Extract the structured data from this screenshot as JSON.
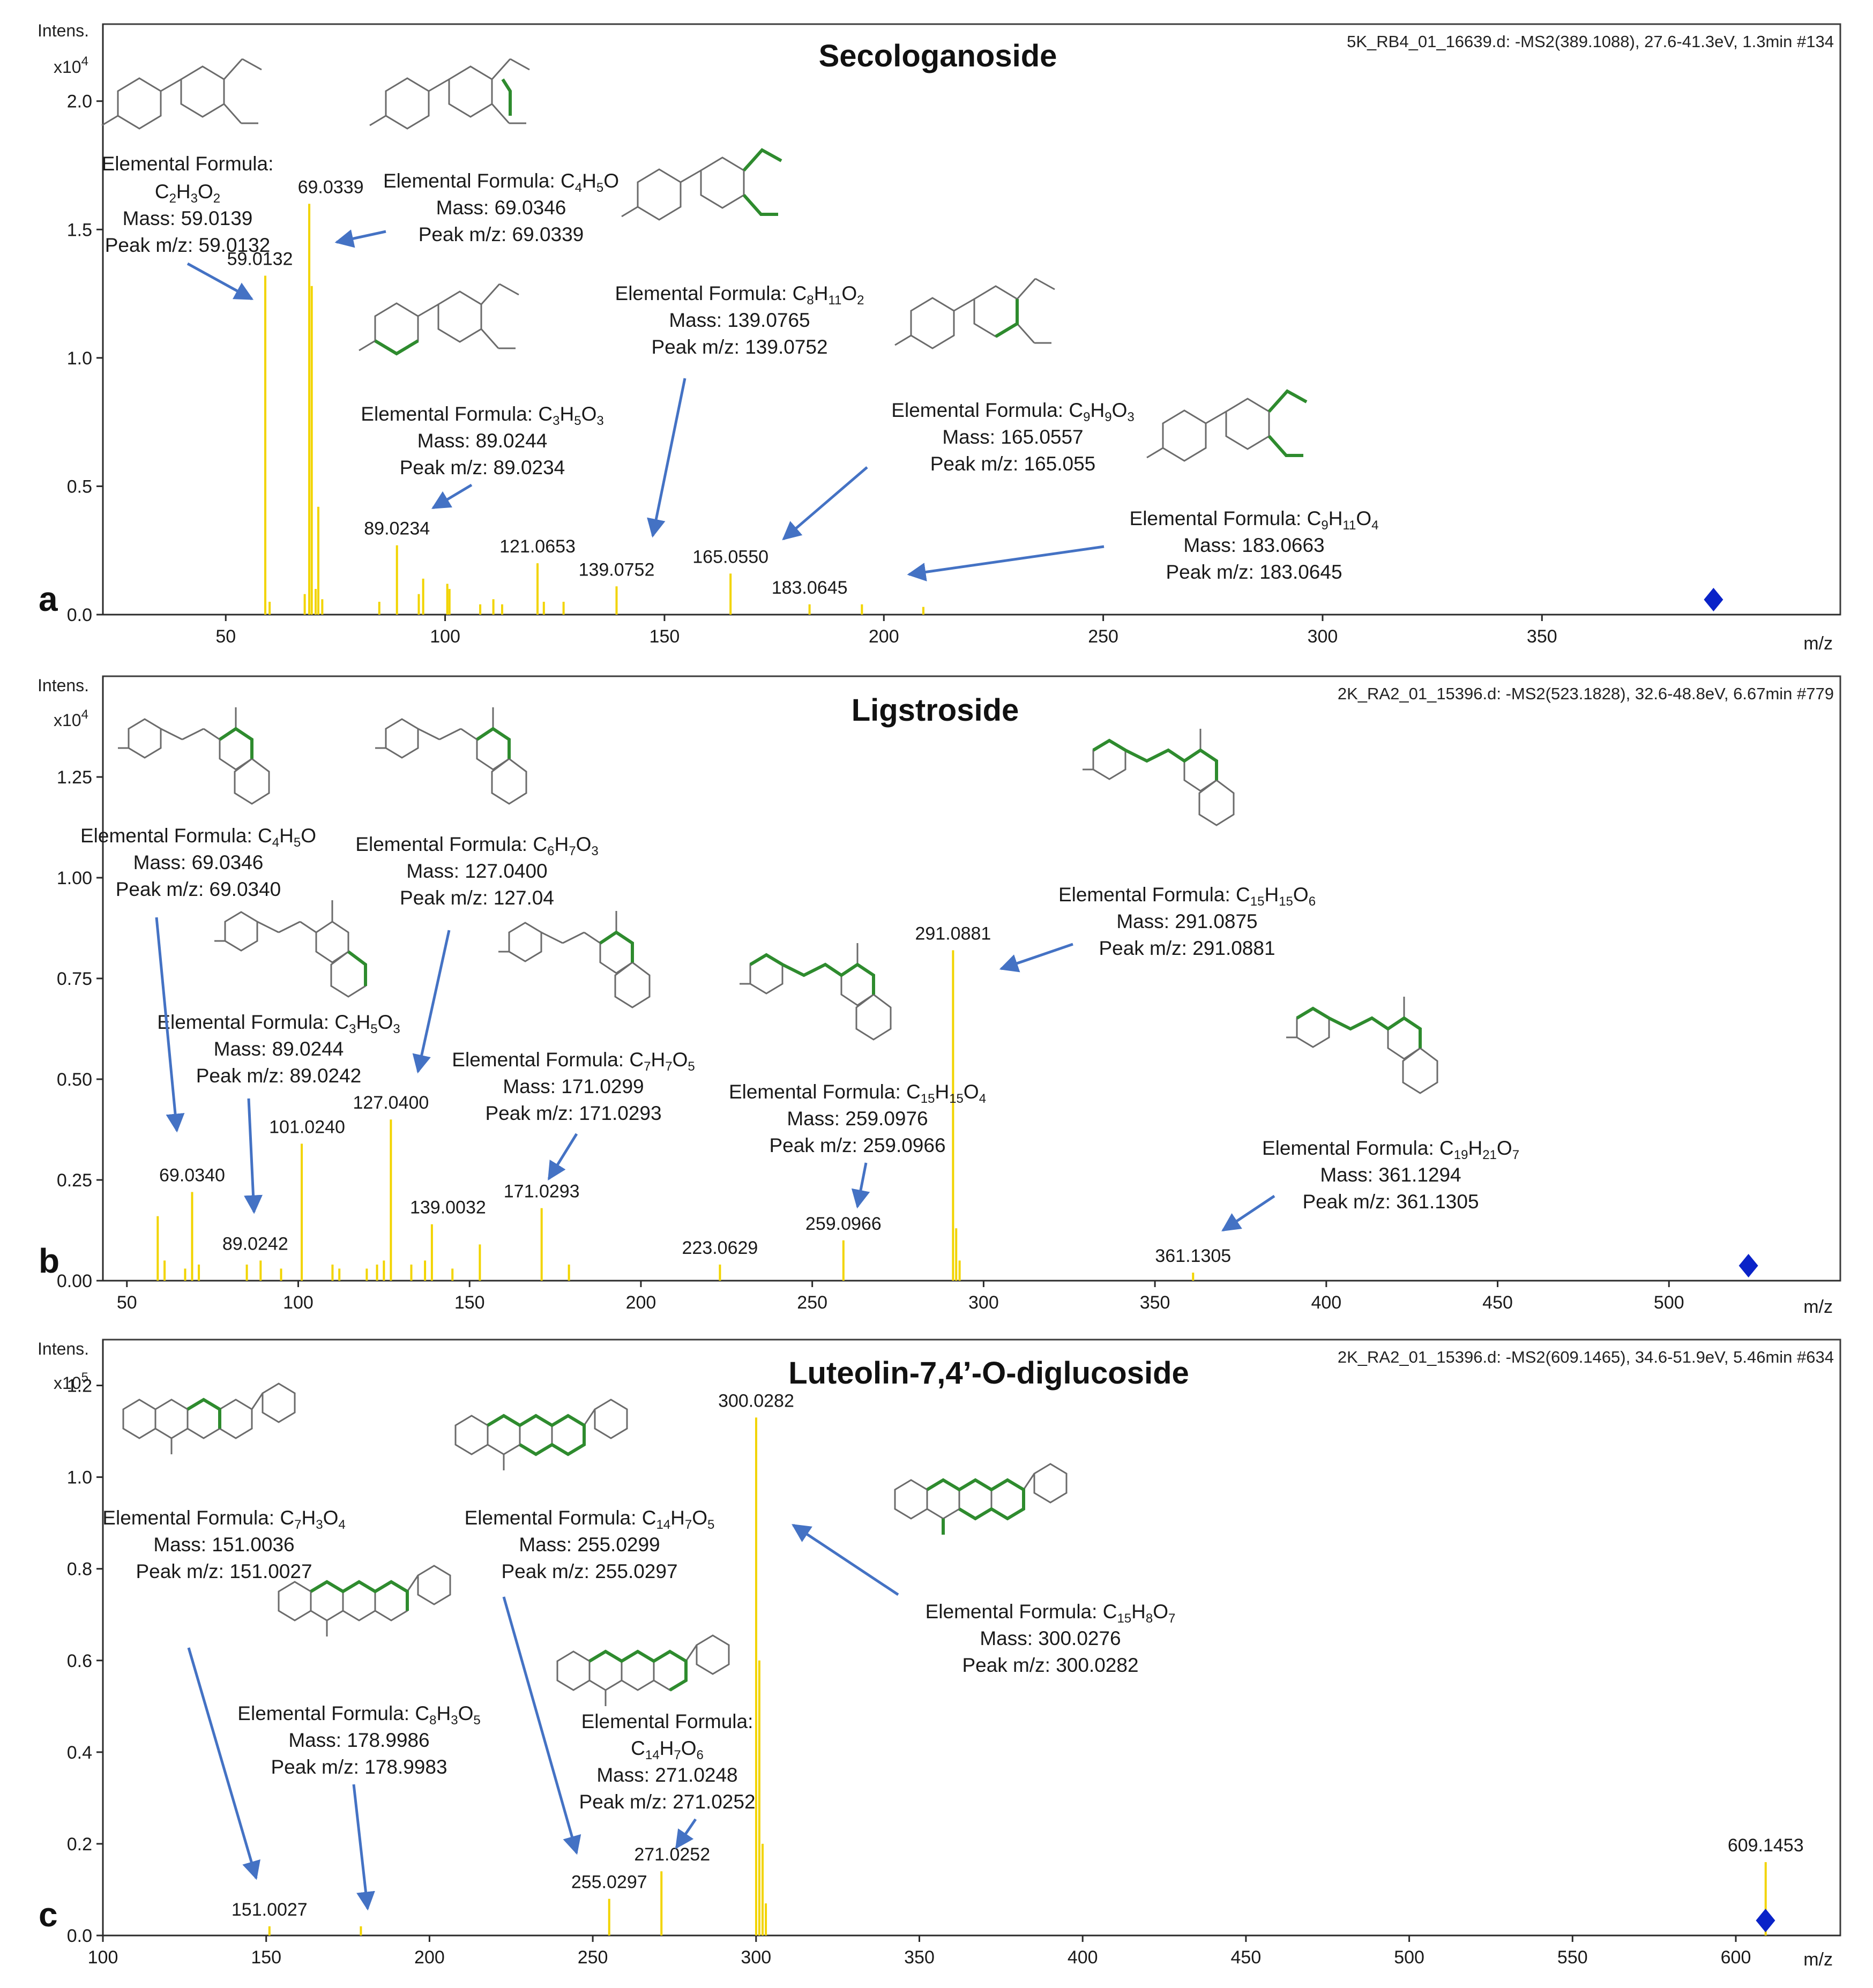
{
  "colors": {
    "stick": "#f2d400",
    "arrow": "#4472c4",
    "marker": "#0a23c8",
    "highlight": "#2e8b2e"
  },
  "intens_label": "Intens.",
  "mz_label": "m/z",
  "chart_data": [
    {
      "type": "bar",
      "panel": "a",
      "title": "Secologanoside",
      "source": "5K_RB4_01_16639.d: -MS2(389.1088), 27.6-41.3eV, 1.3min #134",
      "scale": "x10",
      "scale_exp": "4",
      "xlim": [
        22,
        418
      ],
      "ylim": [
        0,
        2.3
      ],
      "xticks": [
        "50",
        "100",
        "150",
        "200",
        "250",
        "300",
        "350"
      ],
      "yticks": [
        "0.0",
        "0.5",
        "1.0",
        "1.5",
        "2.0"
      ],
      "xtick_values": [
        50,
        100,
        150,
        200,
        250,
        300,
        350
      ],
      "ytick_values": [
        0,
        0.5,
        1.0,
        1.5,
        2.0
      ],
      "peaks": [
        {
          "mz": 59.0132,
          "y": 1.32
        },
        {
          "mz": 60.0,
          "y": 0.05
        },
        {
          "mz": 68.0,
          "y": 0.08
        },
        {
          "mz": 69.0339,
          "y": 1.6
        },
        {
          "mz": 69.6,
          "y": 1.28
        },
        {
          "mz": 70.5,
          "y": 0.1
        },
        {
          "mz": 71.1,
          "y": 0.42
        },
        {
          "mz": 72.0,
          "y": 0.06
        },
        {
          "mz": 85.0,
          "y": 0.05
        },
        {
          "mz": 89.0234,
          "y": 0.27
        },
        {
          "mz": 94.0,
          "y": 0.08
        },
        {
          "mz": 95.0,
          "y": 0.14
        },
        {
          "mz": 100.5,
          "y": 0.12
        },
        {
          "mz": 101.0,
          "y": 0.1
        },
        {
          "mz": 108.0,
          "y": 0.04
        },
        {
          "mz": 111.0,
          "y": 0.06
        },
        {
          "mz": 113.0,
          "y": 0.04
        },
        {
          "mz": 121.0653,
          "y": 0.2
        },
        {
          "mz": 122.5,
          "y": 0.05
        },
        {
          "mz": 127.0,
          "y": 0.05
        },
        {
          "mz": 139.0752,
          "y": 0.11
        },
        {
          "mz": 165.055,
          "y": 0.16
        },
        {
          "mz": 183.0645,
          "y": 0.04
        },
        {
          "mz": 195.0,
          "y": 0.04
        },
        {
          "mz": 209.0,
          "y": 0.03
        }
      ],
      "peak_labels": [
        "59.0132",
        "69.0339",
        "89.0234",
        "121.0653",
        "139.0752",
        "165.0550",
        "183.0645"
      ],
      "precursor_mz": 389.1,
      "annotations": [
        {
          "label": "Elemental Formula:",
          "f1": "C",
          "s1": "2",
          "f2": "H",
          "s2": "3",
          "f3": "O",
          "s3": "2",
          "f4": "",
          "s4": "",
          "mass": "Mass: 59.0139",
          "peak": "Peak m/z: 59.0132"
        },
        {
          "label": "Elemental Formula: ",
          "f1": "C",
          "s1": "4",
          "f2": "H",
          "s2": "5",
          "f3": "O",
          "s3": "",
          "f4": "",
          "s4": "",
          "mass": "Mass: 69.0346",
          "peak": "Peak m/z: 69.0339"
        },
        {
          "label": "Elemental Formula: ",
          "f1": "C",
          "s1": "3",
          "f2": "H",
          "s2": "5",
          "f3": "O",
          "s3": "3",
          "f4": "",
          "s4": "",
          "mass": "Mass: 89.0244",
          "peak": "Peak m/z: 89.0234"
        },
        {
          "label": "Elemental Formula: ",
          "f1": "C",
          "s1": "8",
          "f2": "H",
          "s2": "11",
          "f3": "O",
          "s3": "2",
          "f4": "",
          "s4": "",
          "mass": "Mass: 139.0765",
          "peak": "Peak m/z: 139.0752"
        },
        {
          "label": "Elemental Formula: ",
          "f1": "C",
          "s1": "9",
          "f2": "H",
          "s2": "9",
          "f3": "O",
          "s3": "3",
          "f4": "",
          "s4": "",
          "mass": "Mass: 165.0557",
          "peak": "Peak m/z: 165.055"
        },
        {
          "label": "Elemental Formula: ",
          "f1": "C",
          "s1": "9",
          "f2": "H",
          "s2": "11",
          "f3": "O",
          "s3": "4",
          "f4": "",
          "s4": "",
          "mass": "Mass: 183.0663",
          "peak": "Peak m/z: 183.0645"
        }
      ]
    },
    {
      "type": "bar",
      "panel": "b",
      "title": "Ligstroside",
      "source": "2K_RA2_01_15396.d: -MS2(523.1828), 32.6-48.8eV, 6.67min #779",
      "scale": "x10",
      "scale_exp": "4",
      "xlim": [
        43,
        550
      ],
      "ylim": [
        0,
        1.5
      ],
      "xticks": [
        "50",
        "100",
        "150",
        "200",
        "250",
        "300",
        "350",
        "400",
        "450",
        "500"
      ],
      "yticks": [
        "0.00",
        "0.25",
        "0.50",
        "0.75",
        "1.00",
        "1.25"
      ],
      "xtick_values": [
        50,
        100,
        150,
        200,
        250,
        300,
        350,
        400,
        450,
        500
      ],
      "ytick_values": [
        0,
        0.25,
        0.5,
        0.75,
        1.0,
        1.25
      ],
      "peaks": [
        {
          "mz": 59.0,
          "y": 0.16
        },
        {
          "mz": 61.0,
          "y": 0.05
        },
        {
          "mz": 67.0,
          "y": 0.03
        },
        {
          "mz": 69.034,
          "y": 0.22
        },
        {
          "mz": 71.0,
          "y": 0.04
        },
        {
          "mz": 85.0,
          "y": 0.04
        },
        {
          "mz": 89.0242,
          "y": 0.05
        },
        {
          "mz": 95.0,
          "y": 0.03
        },
        {
          "mz": 101.024,
          "y": 0.34
        },
        {
          "mz": 110.0,
          "y": 0.04
        },
        {
          "mz": 112.0,
          "y": 0.03
        },
        {
          "mz": 120.0,
          "y": 0.03
        },
        {
          "mz": 123.0,
          "y": 0.04
        },
        {
          "mz": 125.0,
          "y": 0.05
        },
        {
          "mz": 127.04,
          "y": 0.4
        },
        {
          "mz": 133.0,
          "y": 0.04
        },
        {
          "mz": 137.0,
          "y": 0.05
        },
        {
          "mz": 139.0032,
          "y": 0.14
        },
        {
          "mz": 145.0,
          "y": 0.03
        },
        {
          "mz": 153.0,
          "y": 0.09
        },
        {
          "mz": 171.0293,
          "y": 0.18
        },
        {
          "mz": 179.0,
          "y": 0.04
        },
        {
          "mz": 223.0629,
          "y": 0.04
        },
        {
          "mz": 259.0966,
          "y": 0.1
        },
        {
          "mz": 291.0881,
          "y": 0.82
        },
        {
          "mz": 292.0,
          "y": 0.13
        },
        {
          "mz": 293.0,
          "y": 0.05
        },
        {
          "mz": 361.1305,
          "y": 0.02
        }
      ],
      "peak_labels": [
        "69.0340",
        "89.0242",
        "101.0240",
        "127.0400",
        "139.0032",
        "171.0293",
        "223.0629",
        "259.0966",
        "291.0881",
        "361.1305"
      ],
      "precursor_mz": 523.2,
      "annotations": [
        {
          "label": "Elemental Formula: ",
          "f1": "C",
          "s1": "4",
          "f2": "H",
          "s2": "5",
          "f3": "O",
          "s3": "",
          "f4": "",
          "s4": "",
          "mass": "Mass: 69.0346",
          "peak": "Peak m/z: 69.0340"
        },
        {
          "label": "Elemental Formula: ",
          "f1": "C",
          "s1": "6",
          "f2": "H",
          "s2": "7",
          "f3": "O",
          "s3": "3",
          "f4": "",
          "s4": "",
          "mass": "Mass: 127.0400",
          "peak": "Peak m/z: 127.04"
        },
        {
          "label": "Elemental Formula: ",
          "f1": "C",
          "s1": "3",
          "f2": "H",
          "s2": "5",
          "f3": "O",
          "s3": "3",
          "f4": "",
          "s4": "",
          "mass": "Mass: 89.0244",
          "peak": "Peak m/z: 89.0242"
        },
        {
          "label": "Elemental Formula: ",
          "f1": "C",
          "s1": "7",
          "f2": "H",
          "s2": "7",
          "f3": "O",
          "s3": "5",
          "f4": "",
          "s4": "",
          "mass": "Mass: 171.0299",
          "peak": "Peak m/z: 171.0293"
        },
        {
          "label": "Elemental Formula: ",
          "f1": "C",
          "s1": "15",
          "f2": "H",
          "s2": "15",
          "f3": "O",
          "s3": "4",
          "f4": "",
          "s4": "",
          "mass": "Mass: 259.0976",
          "peak": "Peak m/z: 259.0966"
        },
        {
          "label": "Elemental Formula: ",
          "f1": "C",
          "s1": "15",
          "f2": "H",
          "s2": "15",
          "f3": "O",
          "s3": "6",
          "f4": "",
          "s4": "",
          "mass": "Mass: 291.0875",
          "peak": "Peak m/z: 291.0881"
        },
        {
          "label": "Elemental Formula: ",
          "f1": "C",
          "s1": "19",
          "f2": "H",
          "s2": "21",
          "f3": "O",
          "s3": "7",
          "f4": "",
          "s4": "",
          "mass": "Mass: 361.1294",
          "peak": "Peak m/z: 361.1305"
        }
      ]
    },
    {
      "type": "bar",
      "panel": "c",
      "title": "Luteolin-7,4’-O-diglucoside",
      "source": "2K_RA2_01_15396.d: -MS2(609.1465), 34.6-51.9eV, 5.46min #634",
      "scale": "x10",
      "scale_exp": "5",
      "xlim": [
        100,
        632
      ],
      "ylim": [
        0,
        1.3
      ],
      "xticks": [
        "100",
        "150",
        "200",
        "250",
        "300",
        "350",
        "400",
        "450",
        "500",
        "550",
        "600"
      ],
      "yticks": [
        "0.0",
        "0.2",
        "0.4",
        "0.6",
        "0.8",
        "1.0",
        "1.2"
      ],
      "xtick_values": [
        100,
        150,
        200,
        250,
        300,
        350,
        400,
        450,
        500,
        550,
        600
      ],
      "ytick_values": [
        0,
        0.2,
        0.4,
        0.6,
        0.8,
        1.0,
        1.2
      ],
      "peaks": [
        {
          "mz": 151.0027,
          "y": 0.02
        },
        {
          "mz": 178.9983,
          "y": 0.02
        },
        {
          "mz": 255.0297,
          "y": 0.08
        },
        {
          "mz": 271.0252,
          "y": 0.14
        },
        {
          "mz": 300.0282,
          "y": 1.13
        },
        {
          "mz": 301.0,
          "y": 0.6
        },
        {
          "mz": 302.0,
          "y": 0.2
        },
        {
          "mz": 303.0,
          "y": 0.07
        },
        {
          "mz": 609.1453,
          "y": 0.16
        }
      ],
      "peak_labels": [
        "151.0027",
        "255.0297",
        "271.0252",
        "300.0282",
        "609.1453"
      ],
      "precursor_mz": 609.1,
      "annotations": [
        {
          "label": "Elemental Formula: ",
          "f1": "C",
          "s1": "7",
          "f2": "H",
          "s2": "3",
          "f3": "O",
          "s3": "4",
          "f4": "",
          "s4": "",
          "mass": "Mass: 151.0036",
          "peak": "Peak m/z: 151.0027"
        },
        {
          "label": "Elemental Formula: ",
          "f1": "C",
          "s1": "14",
          "f2": "H",
          "s2": "7",
          "f3": "O",
          "s3": "5",
          "f4": "",
          "s4": "",
          "mass": "Mass: 255.0299",
          "peak": "Peak m/z: 255.0297"
        },
        {
          "label": "Elemental Formula: ",
          "f1": "C",
          "s1": "8",
          "f2": "H",
          "s2": "3",
          "f3": "O",
          "s3": "5",
          "f4": "",
          "s4": "",
          "mass": "Mass: 178.9986",
          "peak": "Peak m/z: 178.9983"
        },
        {
          "label": "Elemental Formula:",
          "f1": "C",
          "s1": "14",
          "f2": "H",
          "s2": "7",
          "f3": "O",
          "s3": "6",
          "f4": "",
          "s4": "",
          "mass": "Mass: 271.0248",
          "peak": "Peak m/z: 271.0252"
        },
        {
          "label": "Elemental Formula: ",
          "f1": "C",
          "s1": "15",
          "f2": "H",
          "s2": "8",
          "f3": "O",
          "s3": "7",
          "f4": "",
          "s4": "",
          "mass": "Mass: 300.0276",
          "peak": "Peak m/z: 300.0282"
        }
      ]
    }
  ]
}
